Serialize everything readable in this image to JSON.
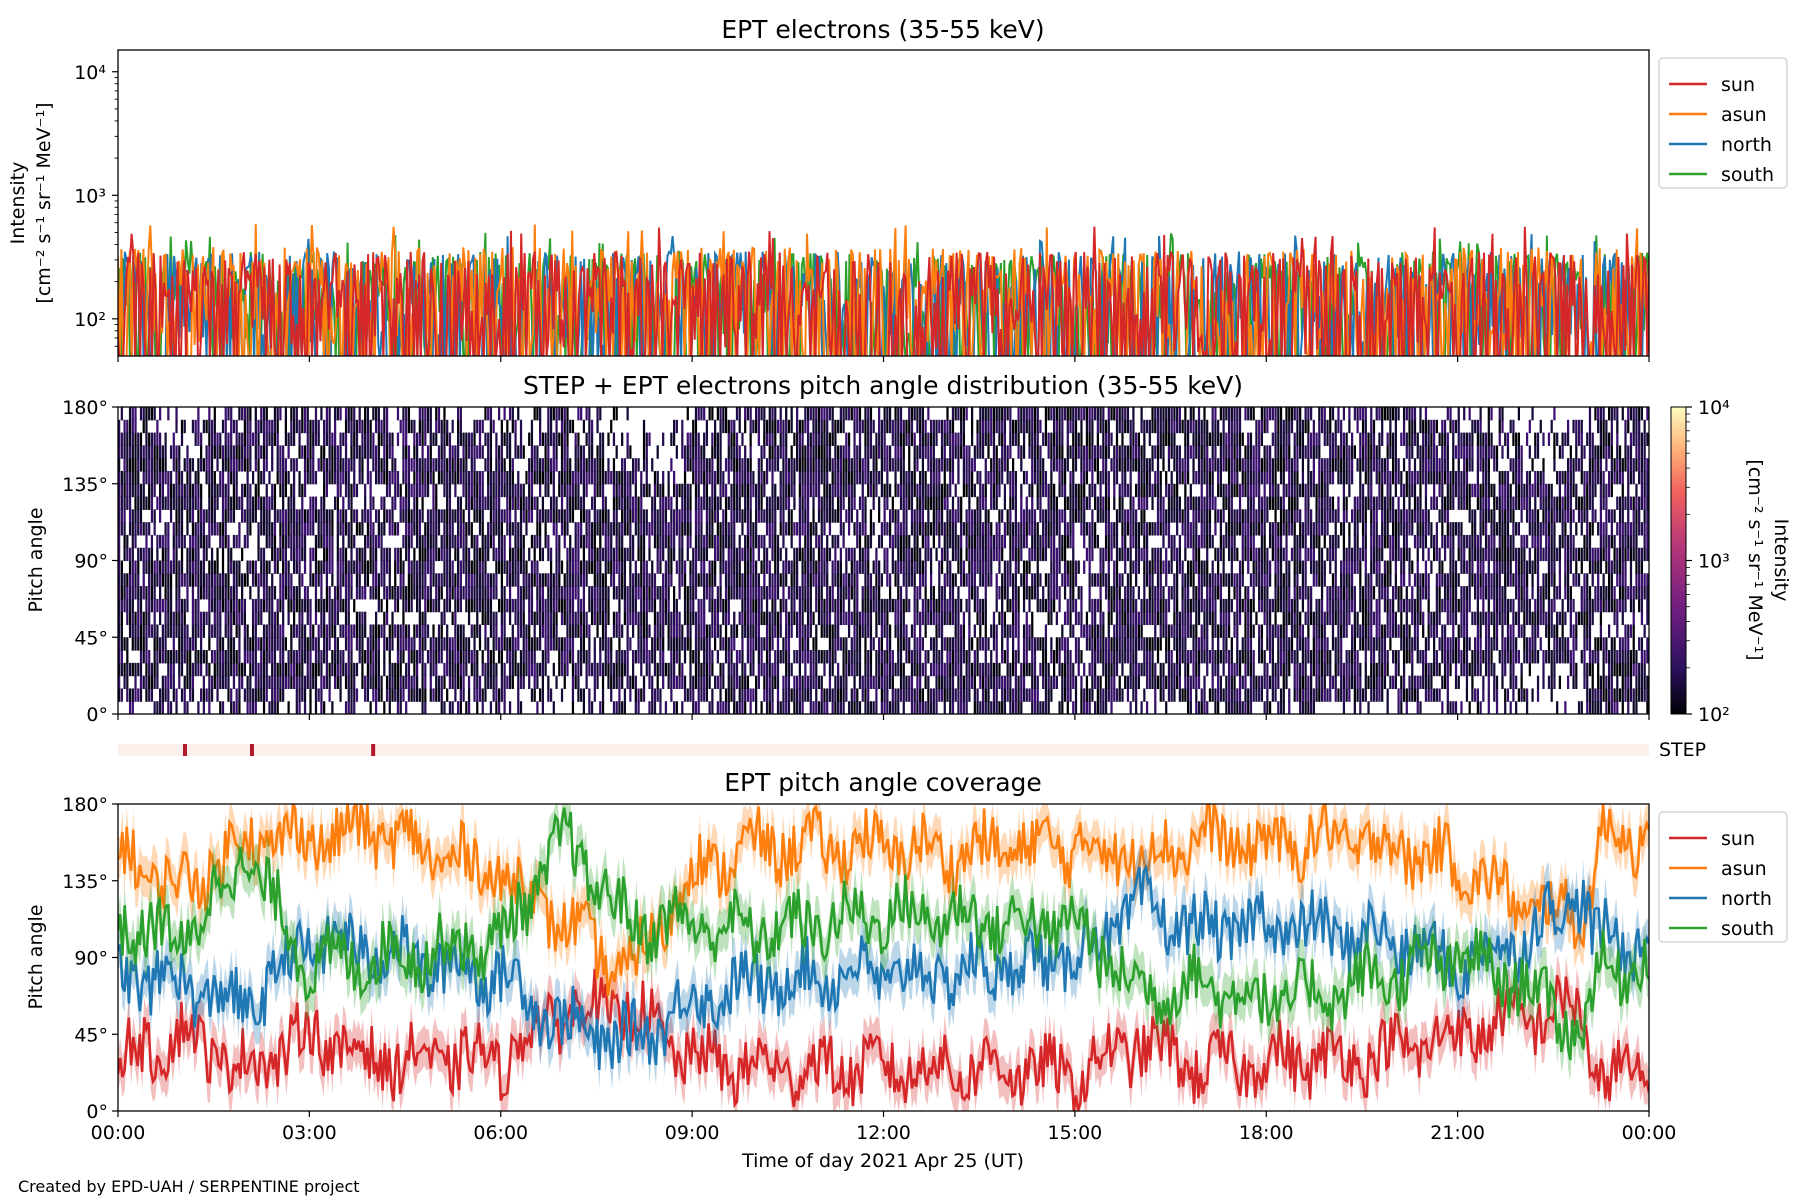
{
  "colors": {
    "sun": "#d62728",
    "asun": "#ff7f0e",
    "north": "#1f77b4",
    "south": "#2ca02c",
    "step_bar": "#b2182b",
    "step_bg": "#fdf0ec"
  },
  "legend_items": [
    "sun",
    "asun",
    "north",
    "south"
  ],
  "footer": "Created by EPD-UAH / SERPENTINE project",
  "chart_data": [
    {
      "type": "line",
      "title": "EPT electrons (35-55 keV)",
      "ylabel": "Intensity",
      "ylabel_units": "[cm⁻² s⁻¹ sr⁻¹ MeV⁻¹]",
      "yscale": "log",
      "ylim": [
        50,
        15000
      ],
      "yticks": [
        {
          "value": 100,
          "label": "10²"
        },
        {
          "value": 1000,
          "label": "10³"
        },
        {
          "value": 10000,
          "label": "10⁴"
        }
      ],
      "xlim": [
        "2021-04-25T00:00",
        "2021-04-26T00:00"
      ],
      "legend": "outside-right",
      "series": [
        {
          "name": "sun",
          "typical_range": [
            50,
            350
          ],
          "max": 560
        },
        {
          "name": "asun",
          "typical_range": [
            60,
            380
          ],
          "max": 600
        },
        {
          "name": "north",
          "typical_range": [
            60,
            350
          ],
          "max": 500
        },
        {
          "name": "south",
          "typical_range": [
            60,
            350
          ],
          "max": 500
        }
      ]
    },
    {
      "type": "heatmap",
      "title": "STEP + EPT electrons pitch angle distribution (35-55 keV)",
      "ylabel": "Pitch angle",
      "ylim": [
        0,
        180
      ],
      "yticks": [
        "0°",
        "45°",
        "90°",
        "135°",
        "180°"
      ],
      "xlim": [
        "2021-04-25T00:00",
        "2021-04-26T00:00"
      ],
      "colorbar": {
        "label": "Intensity",
        "units": "[cm⁻² s⁻¹ sr⁻¹ MeV⁻¹]",
        "scale": "log",
        "range": [
          100,
          10000
        ],
        "ticks": [
          "10²",
          "10³",
          "10⁴"
        ]
      },
      "value_range_observed": [
        100,
        300
      ]
    },
    {
      "type": "bar",
      "label": "STEP",
      "markers_hours": [
        1.05,
        2.1,
        4.0
      ]
    },
    {
      "type": "line",
      "title": "EPT pitch angle coverage",
      "ylabel": "Pitch angle",
      "xlabel": "Time of day 2021 Apr 25 (UT)",
      "ylim": [
        0,
        180
      ],
      "yticks": [
        "0°",
        "45°",
        "90°",
        "135°",
        "180°"
      ],
      "xticks": [
        "00:00",
        "03:00",
        "06:00",
        "09:00",
        "12:00",
        "15:00",
        "18:00",
        "21:00",
        "00:00"
      ],
      "legend": "outside-right",
      "band_half_width_deg": 12,
      "series": [
        {
          "name": "sun",
          "points": [
            [
              0,
              30
            ],
            [
              1,
              45
            ],
            [
              2,
              25
            ],
            [
              3,
              45
            ],
            [
              4,
              30
            ],
            [
              5,
              30
            ],
            [
              6,
              30
            ],
            [
              7,
              60
            ],
            [
              8,
              60
            ],
            [
              9,
              30
            ],
            [
              10,
              25
            ],
            [
              11,
              25
            ],
            [
              12,
              25
            ],
            [
              13,
              25
            ],
            [
              14,
              25
            ],
            [
              15,
              20
            ],
            [
              16,
              40
            ],
            [
              17,
              25
            ],
            [
              18,
              30
            ],
            [
              19,
              30
            ],
            [
              20,
              35
            ],
            [
              21,
              45
            ],
            [
              22,
              55
            ],
            [
              23,
              60
            ],
            [
              23.1,
              20
            ],
            [
              24,
              20
            ]
          ]
        },
        {
          "name": "asun",
          "points": [
            [
              0,
              150
            ],
            [
              1,
              130
            ],
            [
              2,
              160
            ],
            [
              3,
              160
            ],
            [
              4,
              165
            ],
            [
              5,
              150
            ],
            [
              6,
              140
            ],
            [
              7,
              110
            ],
            [
              8,
              80
            ],
            [
              9,
              140
            ],
            [
              10,
              155
            ],
            [
              11,
              155
            ],
            [
              12,
              155
            ],
            [
              13,
              150
            ],
            [
              14,
              155
            ],
            [
              15,
              155
            ],
            [
              16,
              150
            ],
            [
              17,
              160
            ],
            [
              18,
              155
            ],
            [
              19,
              160
            ],
            [
              20,
              155
            ],
            [
              21,
              145
            ],
            [
              22,
              120
            ],
            [
              23,
              115
            ],
            [
              23.2,
              160
            ],
            [
              24,
              160
            ]
          ]
        },
        {
          "name": "north",
          "points": [
            [
              0,
              80
            ],
            [
              1,
              75
            ],
            [
              2,
              60
            ],
            [
              3,
              100
            ],
            [
              4,
              95
            ],
            [
              5,
              85
            ],
            [
              6,
              80
            ],
            [
              7,
              50
            ],
            [
              8,
              40
            ],
            [
              9,
              65
            ],
            [
              10,
              75
            ],
            [
              11,
              80
            ],
            [
              12,
              80
            ],
            [
              13,
              80
            ],
            [
              14,
              85
            ],
            [
              15,
              90
            ],
            [
              16,
              120
            ],
            [
              17,
              105
            ],
            [
              18,
              110
            ],
            [
              19,
              105
            ],
            [
              20,
              100
            ],
            [
              21,
              85
            ],
            [
              22,
              100
            ],
            [
              23,
              130
            ],
            [
              23.1,
              100
            ],
            [
              24,
              100
            ]
          ]
        },
        {
          "name": "south",
          "points": [
            [
              0,
              110
            ],
            [
              1,
              100
            ],
            [
              2,
              150
            ],
            [
              3,
              85
            ],
            [
              4,
              90
            ],
            [
              5,
              95
            ],
            [
              6,
              100
            ],
            [
              7,
              160
            ],
            [
              8,
              110
            ],
            [
              9,
              110
            ],
            [
              10,
              105
            ],
            [
              11,
              110
            ],
            [
              12,
              115
            ],
            [
              13,
              115
            ],
            [
              14,
              110
            ],
            [
              15,
              110
            ],
            [
              16,
              70
            ],
            [
              17,
              75
            ],
            [
              18,
              65
            ],
            [
              19,
              70
            ],
            [
              20,
              80
            ],
            [
              21,
              90
            ],
            [
              22,
              75
            ],
            [
              23,
              45
            ],
            [
              23.2,
              85
            ],
            [
              24,
              85
            ]
          ]
        }
      ]
    }
  ]
}
